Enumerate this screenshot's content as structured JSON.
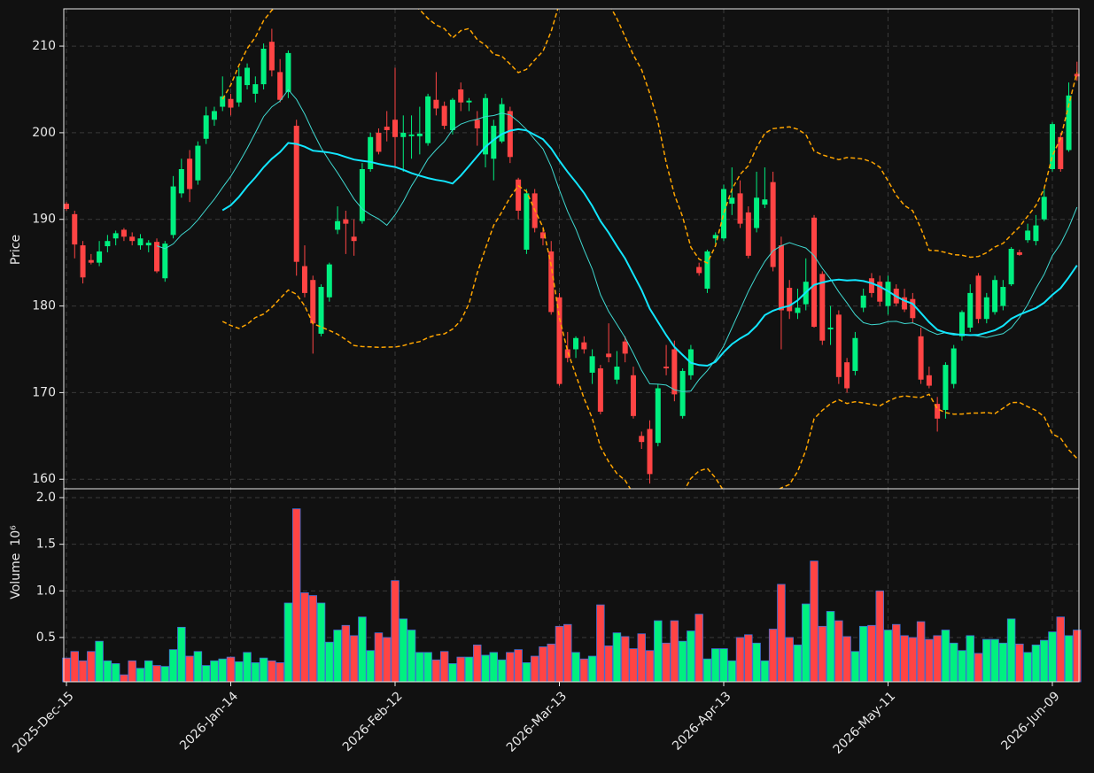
{
  "chart_data": {
    "type": "candlestick",
    "ylabel": "Price",
    "volume_label": "Volume",
    "volume_multiplier": "10⁶",
    "up_color": "#00f080",
    "down_color": "#ff4444",
    "volume_edge_color": "#3f6fd8",
    "grid": true,
    "categories": [
      "2025-Dec-15",
      "2025-Dec-16",
      "2025-Dec-17",
      "2025-Dec-18",
      "2025-Dec-19",
      "2025-Dec-22",
      "2025-Dec-23",
      "2025-Dec-24",
      "2025-Dec-26",
      "2025-Dec-29",
      "2025-Dec-30",
      "2025-Dec-31",
      "2026-Jan-02",
      "2026-Jan-05",
      "2026-Jan-06",
      "2026-Jan-07",
      "2026-Jan-08",
      "2026-Jan-09",
      "2026-Jan-12",
      "2026-Jan-13",
      "2026-Jan-14",
      "2026-Jan-15",
      "2026-Jan-16",
      "2026-Jan-20",
      "2026-Jan-21",
      "2026-Jan-22",
      "2026-Jan-23",
      "2026-Jan-26",
      "2026-Jan-27",
      "2026-Jan-28",
      "2026-Jan-29",
      "2026-Jan-30",
      "2026-Feb-02",
      "2026-Feb-03",
      "2026-Feb-04",
      "2026-Feb-05",
      "2026-Feb-06",
      "2026-Feb-09",
      "2026-Feb-10",
      "2026-Feb-11",
      "2026-Feb-12",
      "2026-Feb-13",
      "2026-Feb-17",
      "2026-Feb-18",
      "2026-Feb-19",
      "2026-Feb-20",
      "2026-Feb-23",
      "2026-Feb-24",
      "2026-Feb-25",
      "2026-Feb-26",
      "2026-Feb-27",
      "2026-Mar-02",
      "2026-Mar-03",
      "2026-Mar-04",
      "2026-Mar-05",
      "2026-Mar-06",
      "2026-Mar-09",
      "2026-Mar-10",
      "2026-Mar-11",
      "2026-Mar-12",
      "2026-Mar-13",
      "2026-Mar-16",
      "2026-Mar-17",
      "2026-Mar-18",
      "2026-Mar-19",
      "2026-Mar-20",
      "2026-Mar-23",
      "2026-Mar-24",
      "2026-Mar-25",
      "2026-Mar-26",
      "2026-Mar-27",
      "2026-Mar-30",
      "2026-Mar-31",
      "2026-Apr-01",
      "2026-Apr-02",
      "2026-Apr-06",
      "2026-Apr-07",
      "2026-Apr-08",
      "2026-Apr-09",
      "2026-Apr-10",
      "2026-Apr-13",
      "2026-Apr-14",
      "2026-Apr-15",
      "2026-Apr-16",
      "2026-Apr-17",
      "2026-Apr-20",
      "2026-Apr-21",
      "2026-Apr-22",
      "2026-Apr-23",
      "2026-Apr-24",
      "2026-Apr-27",
      "2026-Apr-28",
      "2026-Apr-29",
      "2026-Apr-30",
      "2026-May-01",
      "2026-May-04",
      "2026-May-05",
      "2026-May-06",
      "2026-May-07",
      "2026-May-08",
      "2026-May-11",
      "2026-May-12",
      "2026-May-13",
      "2026-May-14",
      "2026-May-15",
      "2026-May-18",
      "2026-May-19",
      "2026-May-20",
      "2026-May-21",
      "2026-May-22",
      "2026-May-26",
      "2026-May-27",
      "2026-May-28",
      "2026-May-29",
      "2026-Jun-01",
      "2026-Jun-02",
      "2026-Jun-03",
      "2026-Jun-04",
      "2026-Jun-05",
      "2026-Jun-08",
      "2026-Jun-09",
      "2026-Jun-10",
      "2026-Jun-11",
      "2026-Jun-12"
    ],
    "open": [
      191.8,
      190.6,
      187,
      185.3,
      185,
      186.9,
      187.8,
      188.8,
      188,
      187,
      187,
      187.4,
      183.2,
      188.2,
      193,
      197,
      194.5,
      199.3,
      201.5,
      203,
      203.9,
      203.5,
      205.5,
      204.5,
      205.6,
      210.5,
      207,
      204.7,
      200.8,
      184.6,
      183,
      176.8,
      181,
      188.8,
      190,
      188,
      189.8,
      195.8,
      200,
      200.7,
      201.5,
      199.5,
      199.6,
      199.6,
      198.8,
      203.8,
      203.1,
      200.3,
      205,
      203.5,
      201.5,
      197.5,
      197,
      199,
      202.5,
      194.6,
      186.5,
      193,
      188.5,
      186.3,
      181,
      175,
      175,
      175.8,
      172.3,
      172.8,
      174.5,
      171.5,
      175.9,
      172,
      165,
      165.8,
      164.2,
      173,
      175,
      167.3,
      172,
      184.5,
      182,
      187.8,
      187.8,
      191.8,
      193,
      190.8,
      189,
      191.7,
      194.3,
      187,
      182.1,
      179.2,
      180.2,
      190.2,
      183.7,
      177.3,
      179,
      173.5,
      172.5,
      179.8,
      183.2,
      182.8,
      180,
      182,
      181,
      180.8,
      176.5,
      172,
      168.7,
      168,
      171,
      176.5,
      177.5,
      183.5,
      178.5,
      179.3,
      180,
      182.5,
      186.2,
      187.6,
      187.5,
      190,
      195.8,
      199.5,
      198,
      206.8
    ],
    "high": [
      192,
      191,
      187.5,
      186,
      187.5,
      188.2,
      188.7,
      189,
      188.5,
      188.3,
      187.6,
      187.8,
      187.5,
      195,
      197,
      198,
      199,
      203,
      203,
      206.5,
      204.5,
      207.5,
      208,
      206.5,
      210.3,
      212,
      208.5,
      209.5,
      201.5,
      187,
      183.5,
      182.5,
      185,
      191.5,
      191,
      190,
      196.5,
      200,
      200.5,
      202.5,
      207.5,
      202,
      202,
      203,
      204.5,
      207,
      203.6,
      204,
      205.8,
      204,
      202.5,
      204.5,
      201.5,
      204,
      203,
      194.8,
      193.5,
      193.5,
      189,
      187.5,
      181.5,
      177,
      176.5,
      176.5,
      175,
      173.2,
      178,
      174.8,
      176.5,
      173,
      165.5,
      166.8,
      171,
      175.5,
      176,
      172.8,
      175.5,
      185,
      186.5,
      188.5,
      194,
      196,
      194.5,
      191.5,
      195.5,
      196,
      195.5,
      188,
      183,
      182,
      185.5,
      190.5,
      184,
      180,
      179.5,
      174,
      177,
      182,
      183.8,
      183.5,
      183.5,
      182.5,
      182,
      181.5,
      177.5,
      173,
      169.5,
      173.5,
      175.5,
      179.5,
      182.5,
      183.8,
      181.5,
      183.5,
      183,
      186.8,
      186.5,
      189.5,
      190.5,
      193.5,
      201.2,
      200,
      205.8,
      208.2
    ],
    "low": [
      191,
      185.5,
      182.6,
      184.8,
      184.6,
      186.2,
      187,
      187.5,
      187,
      186.5,
      186.2,
      183.8,
      182.8,
      187.8,
      192.5,
      192,
      194,
      198.7,
      200.8,
      202.5,
      202,
      203,
      205,
      203.5,
      205,
      206.5,
      203.5,
      204,
      183.5,
      181,
      174.5,
      176.5,
      180.5,
      188.3,
      186,
      185.8,
      189.5,
      195.5,
      197.5,
      199,
      196,
      195.5,
      197,
      197.5,
      198.5,
      202,
      200.4,
      199.8,
      202.5,
      202.5,
      198.5,
      196,
      194.5,
      198.8,
      196.5,
      190,
      186,
      188.5,
      187,
      179,
      170.8,
      173.5,
      174,
      174.5,
      171,
      167.5,
      173.5,
      171,
      173.5,
      167,
      163.5,
      159.5,
      163.8,
      172,
      169,
      167,
      171.5,
      183.5,
      181.5,
      187.2,
      187.5,
      190.5,
      189,
      185.5,
      188.5,
      191.3,
      184,
      175,
      178.5,
      178.5,
      179.5,
      177.5,
      175.5,
      175.5,
      171,
      170,
      172,
      179.3,
      181,
      180,
      179,
      180,
      179.3,
      178,
      171,
      170.5,
      165.5,
      167,
      170.5,
      176,
      177,
      178,
      178,
      179,
      179.5,
      182.3,
      185.8,
      187.3,
      187,
      189.8,
      195.5,
      195.5,
      197.8,
      206
    ],
    "close": [
      191.2,
      187.1,
      183.3,
      185,
      186.3,
      187.5,
      188.4,
      188,
      187.5,
      187.8,
      187.3,
      184,
      187.2,
      193.8,
      195.8,
      193.5,
      198.5,
      202,
      202.5,
      204.2,
      202.9,
      206.5,
      207.5,
      205.6,
      209.7,
      207.2,
      203.8,
      209.2,
      185.1,
      181.5,
      178,
      182.2,
      184.8,
      189.8,
      189.5,
      187.5,
      195.8,
      199.5,
      197.8,
      200.3,
      199.5,
      200,
      199.8,
      199.9,
      204.2,
      202.8,
      200.8,
      203.8,
      203.5,
      203.7,
      200.5,
      204,
      200.8,
      203.3,
      197.2,
      191,
      193,
      189,
      187.8,
      179.3,
      171,
      174,
      176.3,
      175,
      174.2,
      167.8,
      174.1,
      173,
      174.5,
      167.3,
      164.3,
      160.6,
      170.5,
      172.8,
      169.8,
      172.5,
      175,
      183.8,
      186.3,
      188.2,
      193.5,
      192.5,
      189.5,
      185.8,
      192.5,
      192.3,
      184.5,
      179.5,
      179.4,
      179.8,
      182.8,
      177.6,
      176,
      177.5,
      171.8,
      170.5,
      176.3,
      181.2,
      181.5,
      180.5,
      182.8,
      180.3,
      179.6,
      178.6,
      171.5,
      170.8,
      167,
      173.2,
      175.1,
      179.3,
      181.5,
      178.5,
      181,
      183,
      182.2,
      186.6,
      185.9,
      188.7,
      189.3,
      192.6,
      201,
      195.8,
      204.3,
      206.5
    ],
    "volume": [
      0.28,
      0.35,
      0.25,
      0.35,
      0.46,
      0.25,
      0.22,
      0.1,
      0.25,
      0.17,
      0.25,
      0.2,
      0.19,
      0.37,
      0.61,
      0.3,
      0.35,
      0.2,
      0.25,
      0.27,
      0.29,
      0.24,
      0.34,
      0.23,
      0.28,
      0.25,
      0.23,
      0.87,
      1.88,
      0.98,
      0.95,
      0.87,
      0.45,
      0.58,
      0.63,
      0.52,
      0.72,
      0.36,
      0.55,
      0.5,
      1.11,
      0.7,
      0.58,
      0.34,
      0.34,
      0.26,
      0.35,
      0.22,
      0.29,
      0.29,
      0.42,
      0.31,
      0.34,
      0.26,
      0.34,
      0.37,
      0.23,
      0.3,
      0.4,
      0.43,
      0.62,
      0.64,
      0.34,
      0.27,
      0.3,
      0.85,
      0.41,
      0.55,
      0.51,
      0.38,
      0.54,
      0.36,
      0.68,
      0.44,
      0.68,
      0.46,
      0.57,
      0.75,
      0.27,
      0.38,
      0.38,
      0.25,
      0.5,
      0.53,
      0.44,
      0.25,
      0.59,
      1.07,
      0.5,
      0.42,
      0.86,
      1.32,
      0.62,
      0.78,
      0.68,
      0.51,
      0.35,
      0.62,
      0.63,
      1.0,
      0.58,
      0.64,
      0.52,
      0.5,
      0.67,
      0.48,
      0.52,
      0.58,
      0.44,
      0.36,
      0.52,
      0.33,
      0.48,
      0.48,
      0.44,
      0.7,
      0.43,
      0.34,
      0.42,
      0.47,
      0.56,
      0.72,
      0.52,
      0.58
    ],
    "moving_averages": [
      {
        "period": 12,
        "color": "#3fd8d0",
        "width": 1
      },
      {
        "period": 20,
        "color": "#12e6ff",
        "width": 2
      }
    ],
    "bollinger": {
      "period": 20,
      "std": 2,
      "color": "#ffa500"
    },
    "ylim": [
      158.9,
      214.3
    ],
    "yticks": [
      160,
      170,
      180,
      190,
      200,
      210
    ],
    "y2lim": [
      0.025,
      2.095
    ],
    "y2ticks": [
      0.5,
      {
        "value": 1.0,
        "label": "1.0"
      },
      1.5,
      {
        "value": 2.0,
        "label": "2.0"
      }
    ],
    "xticks": [
      "2025-Dec-15",
      "2026-Jan-14",
      "2026-Feb-12",
      "2026-Mar-13",
      "2026-Apr-13",
      "2026-May-11",
      "2026-Jun-09"
    ]
  }
}
